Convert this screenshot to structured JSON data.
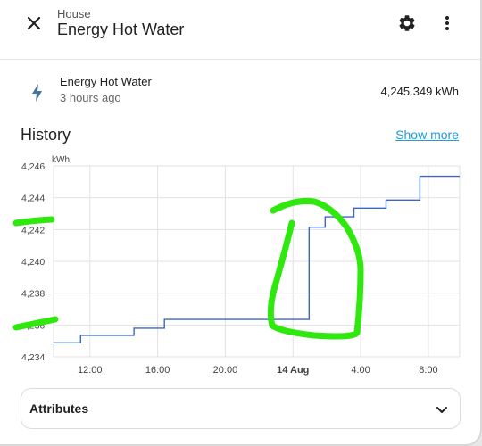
{
  "header": {
    "breadcrumb": "House",
    "title": "Energy Hot Water",
    "close_icon": "close-icon",
    "settings_icon": "gear-icon",
    "menu_icon": "more-vertical-icon"
  },
  "entity": {
    "name": "Energy Hot Water",
    "last_changed": "3 hours ago",
    "state": "4,245.349 kWh",
    "icon": "lightning-bolt-icon",
    "icon_color": "#44739e"
  },
  "history": {
    "title": "History",
    "show_more": "Show more"
  },
  "attributes": {
    "label": "Attributes",
    "icon": "chevron-down-icon"
  },
  "colors": {
    "line": "#3d67c7",
    "accent": "#1e9dd6",
    "highlight": "#2ee80e"
  },
  "chart_data": {
    "type": "line",
    "unit_label": "kWh",
    "ylim": [
      4234,
      4246
    ],
    "y_ticks": [
      "4,234",
      "4,236",
      "4,238",
      "4,240",
      "4,242",
      "4,244",
      "4,246"
    ],
    "x_ticks": [
      {
        "t": 12,
        "label": "12:00",
        "bold": false
      },
      {
        "t": 16,
        "label": "16:00",
        "bold": false
      },
      {
        "t": 20,
        "label": "20:00",
        "bold": false
      },
      {
        "t": 24,
        "label": "14 Aug",
        "bold": true
      },
      {
        "t": 28,
        "label": "4:00",
        "bold": false
      },
      {
        "t": 32,
        "label": "8:00",
        "bold": false
      }
    ],
    "xlim": [
      9.85,
      33.85
    ],
    "grid": true,
    "series": [
      {
        "x": [
          9.85,
          11.45,
          11.45,
          14.6,
          14.6,
          16.4,
          16.4,
          24.95,
          24.95,
          25.9,
          25.9,
          27.6,
          27.6,
          29.5,
          29.5,
          31.5,
          31.5,
          33.85
        ],
        "values": [
          4234.88,
          4234.88,
          4235.35,
          4235.35,
          4235.8,
          4235.8,
          4236.35,
          4236.35,
          4242.15,
          4242.15,
          4242.8,
          4242.8,
          4243.35,
          4243.35,
          4243.85,
          4243.85,
          4245.35,
          4245.35
        ]
      }
    ]
  }
}
